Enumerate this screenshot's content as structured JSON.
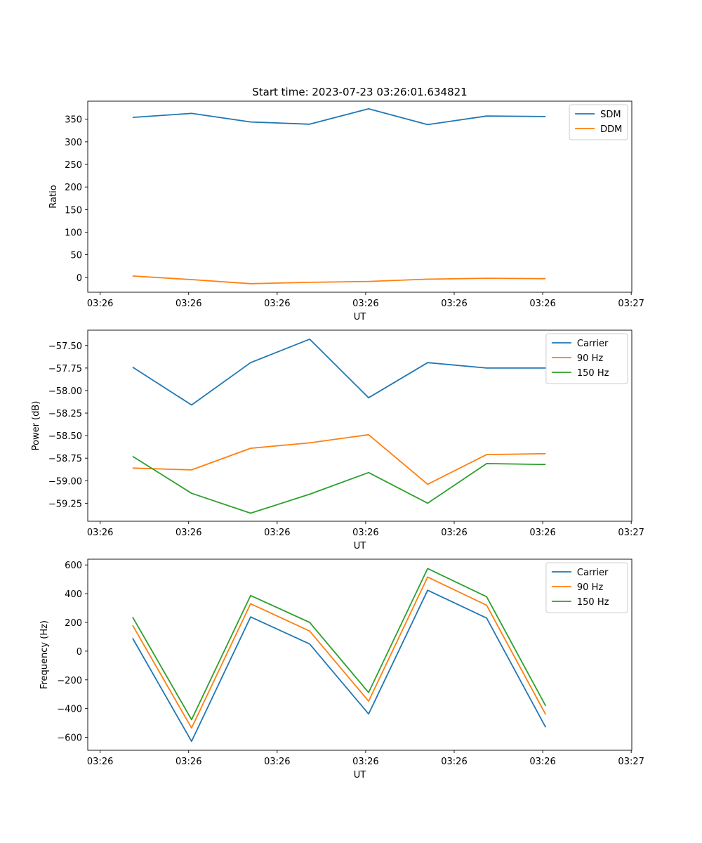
{
  "figure_title": "Start time: 2023-07-23 03:26:01.634821",
  "chart_data": [
    {
      "type": "line",
      "title": "Start time: 2023-07-23 03:26:01.634821",
      "xlabel": "UT",
      "ylabel": "Ratio",
      "x": [
        1,
        2,
        3,
        4,
        5,
        6,
        7,
        8
      ],
      "xlim": [
        0.24,
        9.46
      ],
      "xticks": [
        0.45,
        1.95,
        3.45,
        4.95,
        6.45,
        7.95,
        9.45
      ],
      "xtick_labels": [
        "03:26",
        "03:26",
        "03:26",
        "03:26",
        "03:26",
        "03:26",
        "03:27"
      ],
      "ylim": [
        -33,
        390
      ],
      "yticks": [
        0,
        50,
        100,
        150,
        200,
        250,
        300,
        350
      ],
      "ytick_labels": [
        "0",
        "50",
        "100",
        "150",
        "200",
        "250",
        "300",
        "350"
      ],
      "legend": "top-right",
      "series": [
        {
          "name": "SDM",
          "color": "#1f77b4",
          "values": [
            354,
            363,
            344,
            339,
            373,
            338,
            357,
            356
          ]
        },
        {
          "name": "DDM",
          "color": "#ff7f0e",
          "values": [
            3,
            -5,
            -14,
            -11,
            -9,
            -4,
            -2,
            -3
          ]
        }
      ]
    },
    {
      "type": "line",
      "title": "",
      "xlabel": "UT",
      "ylabel": "Power (dB)",
      "x": [
        1,
        2,
        3,
        4,
        5,
        6,
        7,
        8
      ],
      "xlim": [
        0.24,
        9.46
      ],
      "xticks": [
        0.45,
        1.95,
        3.45,
        4.95,
        6.45,
        7.95,
        9.45
      ],
      "xtick_labels": [
        "03:26",
        "03:26",
        "03:26",
        "03:26",
        "03:26",
        "03:26",
        "03:27"
      ],
      "ylim": [
        -59.45,
        -57.33
      ],
      "yticks": [
        -59.25,
        -59.0,
        -58.75,
        -58.5,
        -58.25,
        -58.0,
        -57.75,
        -57.5
      ],
      "ytick_labels": [
        "−59.25",
        "−59.00",
        "−58.75",
        "−58.50",
        "−58.25",
        "−58.00",
        "−57.75",
        "−57.50"
      ],
      "legend": "top-right",
      "series": [
        {
          "name": "Carrier",
          "color": "#1f77b4",
          "values": [
            -57.74,
            -58.16,
            -57.69,
            -57.43,
            -58.08,
            -57.69,
            -57.75,
            -57.75
          ]
        },
        {
          "name": "90 Hz",
          "color": "#ff7f0e",
          "values": [
            -58.86,
            -58.88,
            -58.64,
            -58.58,
            -58.49,
            -59.04,
            -58.71,
            -58.7
          ]
        },
        {
          "name": "150 Hz",
          "color": "#2ca02c",
          "values": [
            -58.73,
            -59.14,
            -59.36,
            -59.15,
            -58.91,
            -59.25,
            -58.81,
            -58.82
          ]
        }
      ]
    },
    {
      "type": "line",
      "title": "",
      "xlabel": "UT",
      "ylabel": "Frequency (Hz)",
      "x": [
        1,
        2,
        3,
        4,
        5,
        6,
        7,
        8
      ],
      "xlim": [
        0.24,
        9.46
      ],
      "xticks": [
        0.45,
        1.95,
        3.45,
        4.95,
        6.45,
        7.95,
        9.45
      ],
      "xtick_labels": [
        "03:26",
        "03:26",
        "03:26",
        "03:26",
        "03:26",
        "03:26",
        "03:27"
      ],
      "ylim": [
        -690,
        640
      ],
      "yticks": [
        -600,
        -400,
        -200,
        0,
        200,
        400,
        600
      ],
      "ytick_labels": [
        "−600",
        "−400",
        "−200",
        "0",
        "200",
        "400",
        "600"
      ],
      "legend": "top-right",
      "series": [
        {
          "name": "Carrier",
          "color": "#1f77b4",
          "values": [
            90,
            -628,
            238,
            50,
            -437,
            424,
            230,
            -530
          ]
        },
        {
          "name": "90 Hz",
          "color": "#ff7f0e",
          "values": [
            180,
            -535,
            330,
            140,
            -348,
            516,
            319,
            -441
          ]
        },
        {
          "name": "150 Hz",
          "color": "#2ca02c",
          "values": [
            237,
            -477,
            387,
            200,
            -288,
            575,
            379,
            -381
          ]
        }
      ]
    }
  ]
}
